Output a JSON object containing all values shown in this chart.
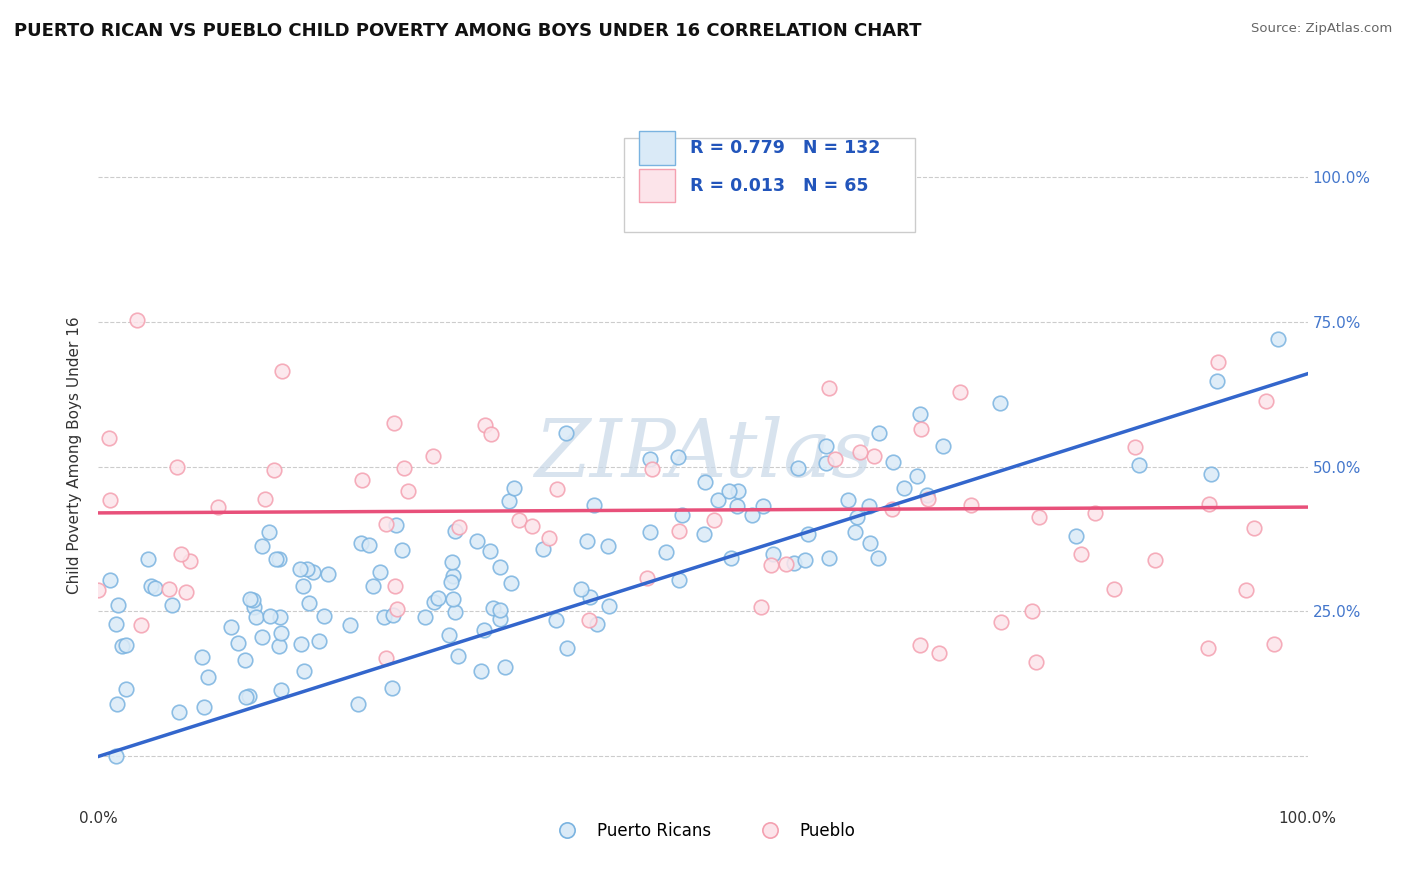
{
  "title": "PUERTO RICAN VS PUEBLO CHILD POVERTY AMONG BOYS UNDER 16 CORRELATION CHART",
  "source": "Source: ZipAtlas.com",
  "ylabel": "Child Poverty Among Boys Under 16",
  "xlim": [
    0,
    1
  ],
  "ylim": [
    -0.08,
    1.12
  ],
  "R_blue": 0.779,
  "N_blue": 132,
  "R_pink": 0.013,
  "N_pink": 65,
  "blue_edge": "#7ab3e0",
  "pink_edge": "#f4a0b0",
  "blue_fill": "#daeaf7",
  "pink_fill": "#fce4ea",
  "trend_blue": "#3366cc",
  "trend_pink": "#e8507a",
  "watermark_color": "#c8d8e8",
  "background_color": "#ffffff",
  "grid_color": "#cccccc",
  "legend_label_blue": "Puerto Ricans",
  "legend_label_pink": "Pueblo",
  "title_fontsize": 13,
  "axis_label_fontsize": 11,
  "legend_fontsize": 12,
  "right_tick_color": "#4477cc",
  "blue_trend_start_y": 0.0,
  "blue_trend_end_y": 0.66,
  "pink_trend_y": 0.42
}
